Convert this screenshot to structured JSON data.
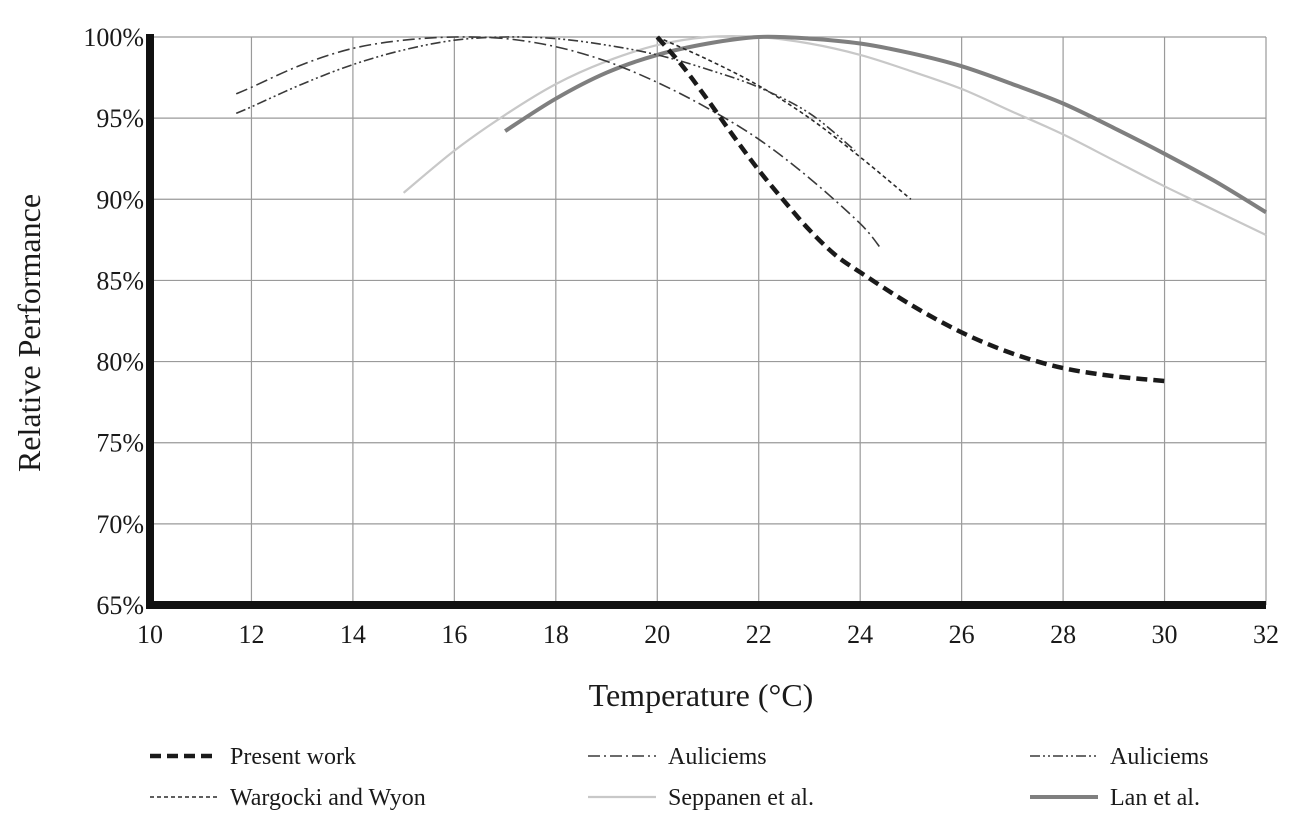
{
  "chart_data": {
    "type": "line",
    "xlabel": "Temperature (°C)",
    "ylabel": "Relative Performance",
    "xlim": [
      10,
      32
    ],
    "ylim": [
      65,
      100
    ],
    "x_ticks": [
      10,
      12,
      14,
      16,
      18,
      20,
      22,
      24,
      26,
      28,
      30,
      32
    ],
    "y_ticks": [
      65,
      70,
      75,
      80,
      85,
      90,
      95,
      100
    ],
    "y_tick_suffix": "%",
    "grid": true,
    "legend_position": "bottom",
    "series": [
      {
        "name": "Present work",
        "style": "dashed-thick",
        "color": "#1a1a1a",
        "points": [
          [
            20,
            100
          ],
          [
            20.5,
            98.2
          ],
          [
            21,
            96.1
          ],
          [
            21.5,
            93.9
          ],
          [
            22,
            91.8
          ],
          [
            22.5,
            89.9
          ],
          [
            23,
            88.1
          ],
          [
            23.5,
            86.6
          ],
          [
            24,
            85.5
          ],
          [
            25,
            83.5
          ],
          [
            26,
            81.8
          ],
          [
            27,
            80.5
          ],
          [
            28,
            79.6
          ],
          [
            29,
            79.1
          ],
          [
            30,
            78.8
          ]
        ]
      },
      {
        "name": "Auliciems",
        "style": "dash-dot",
        "color": "#3a3a3a",
        "points": [
          [
            11.7,
            96.5
          ],
          [
            12,
            96.9
          ],
          [
            13,
            98.3
          ],
          [
            14,
            99.3
          ],
          [
            15,
            99.8
          ],
          [
            16,
            100
          ],
          [
            17,
            99.9
          ],
          [
            18,
            99.4
          ],
          [
            19,
            98.5
          ],
          [
            20,
            97.2
          ],
          [
            21,
            95.6
          ],
          [
            22,
            93.7
          ],
          [
            23,
            91.3
          ],
          [
            24,
            88.5
          ],
          [
            24.4,
            87.0
          ]
        ]
      },
      {
        "name": "Auliciems",
        "style": "dash-dot-dot",
        "color": "#3a3a3a",
        "points": [
          [
            11.7,
            95.3
          ],
          [
            12,
            95.7
          ],
          [
            13,
            97.1
          ],
          [
            14,
            98.3
          ],
          [
            15,
            99.2
          ],
          [
            16,
            99.8
          ],
          [
            17,
            100
          ],
          [
            18,
            99.9
          ],
          [
            19,
            99.5
          ],
          [
            20,
            98.9
          ],
          [
            21,
            98.0
          ],
          [
            22,
            96.9
          ],
          [
            23,
            95.3
          ],
          [
            23.9,
            93.0
          ]
        ]
      },
      {
        "name": "Wargocki and Wyon",
        "style": "dotted",
        "color": "#2a2a2a",
        "points": [
          [
            20,
            100
          ],
          [
            21,
            98.6
          ],
          [
            22,
            97.0
          ],
          [
            23,
            95.0
          ],
          [
            24,
            92.6
          ],
          [
            25,
            90.0
          ]
        ]
      },
      {
        "name": "Seppanen et al.",
        "style": "solid-light",
        "color": "#c8c8c8",
        "points": [
          [
            15,
            90.4
          ],
          [
            16,
            93.0
          ],
          [
            17,
            95.2
          ],
          [
            18,
            97.1
          ],
          [
            19,
            98.5
          ],
          [
            20,
            99.5
          ],
          [
            21,
            100
          ],
          [
            22,
            100
          ],
          [
            23,
            99.6
          ],
          [
            24,
            98.9
          ],
          [
            25,
            97.9
          ],
          [
            26,
            96.8
          ],
          [
            27,
            95.4
          ],
          [
            28,
            94.0
          ],
          [
            29,
            92.4
          ],
          [
            30,
            90.8
          ],
          [
            31,
            89.3
          ],
          [
            32,
            87.8
          ]
        ]
      },
      {
        "name": "Lan et al.",
        "style": "solid-thick",
        "color": "#7f7f7f",
        "points": [
          [
            17,
            94.2
          ],
          [
            18,
            96.2
          ],
          [
            19,
            97.8
          ],
          [
            20,
            98.9
          ],
          [
            21,
            99.6
          ],
          [
            22,
            100
          ],
          [
            23,
            99.9
          ],
          [
            24,
            99.6
          ],
          [
            25,
            99.0
          ],
          [
            26,
            98.2
          ],
          [
            27,
            97.1
          ],
          [
            28,
            95.9
          ],
          [
            29,
            94.4
          ],
          [
            30,
            92.8
          ],
          [
            31,
            91.1
          ],
          [
            32,
            89.2
          ]
        ]
      }
    ]
  }
}
